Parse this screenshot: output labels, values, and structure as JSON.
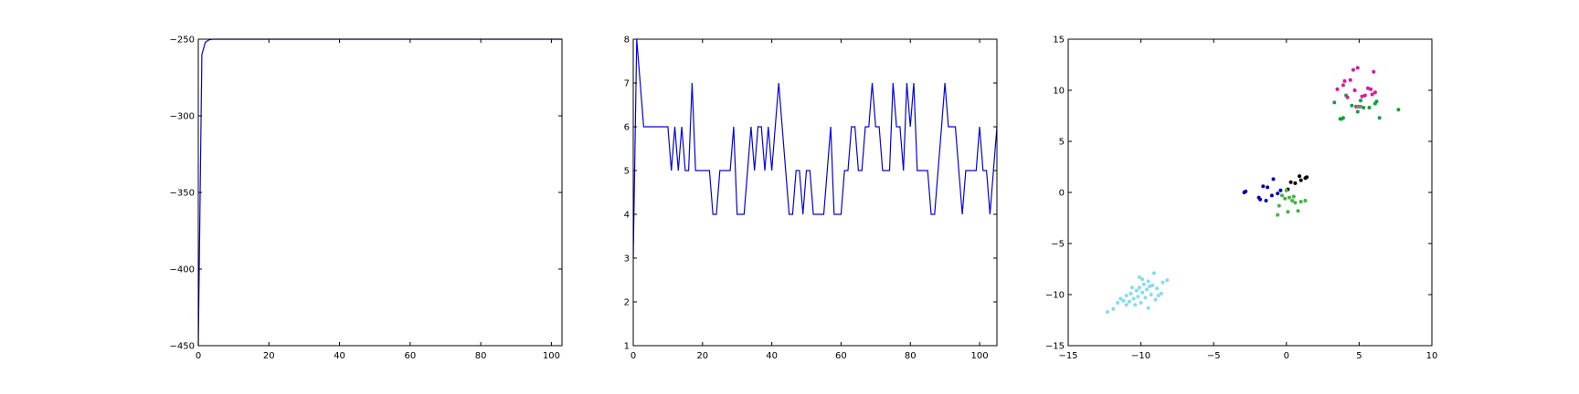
{
  "chart_data": [
    {
      "type": "line",
      "xlim": [
        0,
        103
      ],
      "ylim": [
        -450,
        -250
      ],
      "xticks": [
        0,
        20,
        40,
        60,
        80,
        100
      ],
      "yticks": [
        -450,
        -400,
        -350,
        -300,
        -250
      ],
      "grid": false,
      "series": [
        {
          "color": "#0000ff",
          "x": [
            0,
            1,
            2,
            3,
            4,
            5,
            10,
            20,
            40,
            60,
            80,
            100,
            103
          ],
          "y": [
            -450,
            -260,
            -252,
            -250.5,
            -250,
            -250,
            -250,
            -250,
            -250,
            -250,
            -250,
            -250,
            -250
          ]
        }
      ]
    },
    {
      "type": "line",
      "xlim": [
        0,
        105
      ],
      "ylim": [
        1,
        8
      ],
      "xticks": [
        0,
        20,
        40,
        60,
        80,
        100
      ],
      "yticks": [
        1,
        2,
        3,
        4,
        5,
        6,
        7,
        8
      ],
      "grid": false,
      "series": [
        {
          "color": "#0000ff",
          "x": [
            0,
            1,
            2,
            3,
            4,
            5,
            6,
            7,
            8,
            9,
            10,
            11,
            12,
            13,
            14,
            15,
            16,
            17,
            18,
            19,
            20,
            21,
            22,
            23,
            24,
            25,
            26,
            27,
            28,
            29,
            30,
            31,
            32,
            33,
            34,
            35,
            36,
            37,
            38,
            39,
            40,
            41,
            42,
            43,
            44,
            45,
            46,
            47,
            48,
            49,
            50,
            51,
            52,
            53,
            54,
            55,
            56,
            57,
            58,
            59,
            60,
            61,
            62,
            63,
            64,
            65,
            66,
            67,
            68,
            69,
            70,
            71,
            72,
            73,
            74,
            75,
            76,
            77,
            78,
            79,
            80,
            81,
            82,
            83,
            84,
            85,
            86,
            87,
            88,
            89,
            90,
            91,
            92,
            93,
            94,
            95,
            96,
            97,
            98,
            99,
            100,
            101,
            102,
            103,
            104,
            105
          ],
          "y": [
            3,
            8,
            7,
            6,
            6,
            6,
            6,
            6,
            6,
            6,
            6,
            5,
            6,
            5,
            6,
            5,
            5,
            7,
            5,
            5,
            5,
            5,
            5,
            4,
            4,
            5,
            5,
            5,
            5,
            6,
            4,
            4,
            4,
            5,
            6,
            5,
            6,
            6,
            5,
            6,
            5,
            6,
            7,
            6,
            5,
            4,
            4,
            5,
            5,
            4,
            5,
            5,
            4,
            4,
            4,
            4,
            5,
            6,
            4,
            4,
            4,
            5,
            5,
            6,
            6,
            5,
            5,
            6,
            6,
            7,
            6,
            6,
            5,
            5,
            5,
            7,
            6,
            6,
            5,
            7,
            6,
            7,
            5,
            5,
            5,
            5,
            4,
            4,
            5,
            6,
            7,
            6,
            6,
            6,
            5,
            4,
            5,
            5,
            5,
            5,
            6,
            5,
            5,
            4,
            5,
            6
          ]
        }
      ]
    },
    {
      "type": "scatter",
      "xlim": [
        -15,
        10
      ],
      "ylim": [
        -15,
        15
      ],
      "xticks": [
        -15,
        -10,
        -5,
        0,
        5,
        10
      ],
      "yticks": [
        -15,
        -10,
        -5,
        0,
        5,
        10,
        15
      ],
      "grid": false,
      "series": [
        {
          "color": "#7fdff0",
          "points": [
            [
              -12.3,
              -11.7
            ],
            [
              -11.9,
              -11.4
            ],
            [
              -11.6,
              -10.8
            ],
            [
              -11.4,
              -10.4
            ],
            [
              -11.2,
              -10.6
            ],
            [
              -11.0,
              -10.1
            ],
            [
              -10.8,
              -10.7
            ],
            [
              -10.7,
              -9.9
            ],
            [
              -10.5,
              -10.4
            ],
            [
              -10.4,
              -11.0
            ],
            [
              -10.3,
              -9.6
            ],
            [
              -10.2,
              -10.2
            ],
            [
              -10.1,
              -9.3
            ],
            [
              -10.0,
              -10.8
            ],
            [
              -9.9,
              -9.8
            ],
            [
              -9.8,
              -9.0
            ],
            [
              -9.7,
              -10.3
            ],
            [
              -9.6,
              -9.5
            ],
            [
              -9.5,
              -8.7
            ],
            [
              -9.5,
              -11.3
            ],
            [
              -9.4,
              -9.2
            ],
            [
              -9.3,
              -10.0
            ],
            [
              -9.2,
              -9.1
            ],
            [
              -9.1,
              -7.9
            ],
            [
              -9.0,
              -10.5
            ],
            [
              -8.9,
              -9.4
            ],
            [
              -8.8,
              -10.1
            ],
            [
              -8.6,
              -9.9
            ],
            [
              -8.5,
              -8.8
            ],
            [
              -8.2,
              -8.6
            ],
            [
              -10.1,
              -8.3
            ],
            [
              -11.0,
              -11.0
            ],
            [
              -10.6,
              -9.3
            ],
            [
              -9.9,
              -8.5
            ]
          ]
        },
        {
          "color": "#0000cc",
          "points": [
            [
              -2.9,
              0.0
            ],
            [
              -2.8,
              0.1
            ],
            [
              -1.9,
              -0.5
            ],
            [
              -1.8,
              -0.7
            ],
            [
              -1.6,
              0.6
            ],
            [
              -1.4,
              -0.8
            ],
            [
              -1.3,
              0.5
            ],
            [
              -1.0,
              -0.3
            ],
            [
              -0.9,
              1.3
            ],
            [
              -0.6,
              -0.1
            ],
            [
              -0.4,
              0.2
            ]
          ]
        },
        {
          "color": "#000000",
          "points": [
            [
              0.3,
              1.0
            ],
            [
              0.6,
              0.9
            ],
            [
              0.9,
              1.6
            ],
            [
              1.0,
              1.2
            ],
            [
              1.3,
              1.4
            ],
            [
              1.4,
              1.5
            ],
            [
              0.1,
              0.3
            ]
          ]
        },
        {
          "color": "#3cb83c",
          "points": [
            [
              -0.6,
              -2.2
            ],
            [
              -0.5,
              -1.3
            ],
            [
              -0.3,
              -0.3
            ],
            [
              -0.1,
              -0.6
            ],
            [
              0.0,
              0.2
            ],
            [
              0.1,
              -1.9
            ],
            [
              0.2,
              -0.5
            ],
            [
              0.4,
              -0.8
            ],
            [
              0.5,
              -0.4
            ],
            [
              0.6,
              -1.0
            ],
            [
              0.8,
              -1.8
            ],
            [
              1.0,
              -0.9
            ],
            [
              1.3,
              -0.8
            ]
          ]
        },
        {
          "color": "#00aa33",
          "points": [
            [
              3.3,
              8.8
            ],
            [
              3.7,
              7.2
            ],
            [
              3.9,
              7.3
            ],
            [
              4.1,
              9.5
            ],
            [
              4.5,
              8.5
            ],
            [
              4.8,
              8.4
            ],
            [
              4.9,
              7.9
            ],
            [
              5.1,
              9.0
            ],
            [
              5.3,
              8.3
            ],
            [
              5.7,
              8.3
            ],
            [
              6.1,
              8.7
            ],
            [
              6.2,
              8.9
            ],
            [
              6.4,
              7.3
            ],
            [
              7.7,
              8.1
            ],
            [
              3.8,
              7.2
            ]
          ]
        },
        {
          "color": "#e8109e",
          "points": [
            [
              3.5,
              10.1
            ],
            [
              3.9,
              10.5
            ],
            [
              4.0,
              10.9
            ],
            [
              4.2,
              9.3
            ],
            [
              4.4,
              11.0
            ],
            [
              4.6,
              12.0
            ],
            [
              4.7,
              10.0
            ],
            [
              4.9,
              12.2
            ],
            [
              5.0,
              8.4
            ],
            [
              5.2,
              9.4
            ],
            [
              5.4,
              9.5
            ],
            [
              5.6,
              10.2
            ],
            [
              5.8,
              10.1
            ],
            [
              5.9,
              9.6
            ],
            [
              6.0,
              11.8
            ],
            [
              6.1,
              9.8
            ],
            [
              4.8,
              8.4
            ]
          ]
        },
        {
          "color": "#808080",
          "points": [
            [
              4.9,
              8.4
            ],
            [
              5.1,
              8.4
            ]
          ]
        }
      ]
    }
  ]
}
